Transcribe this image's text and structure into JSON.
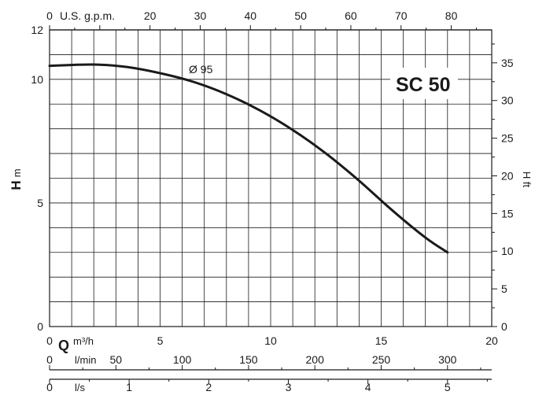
{
  "chart_data": {
    "type": "line",
    "model_label": "SC 50",
    "curve_label": "Ø 95",
    "y_left": {
      "label_bold": "H",
      "label_unit": "m",
      "ticks": [
        "0",
        "5",
        "10",
        "12"
      ],
      "range": [
        0,
        12
      ]
    },
    "y_right": {
      "label": "H ft",
      "ticks": [
        "0",
        "5",
        "10",
        "15",
        "20",
        "25",
        "30",
        "35"
      ],
      "range": [
        0,
        39.37
      ]
    },
    "x_top": {
      "label": "U.S. g.p.m.",
      "ticks": [
        "0",
        "20",
        "30",
        "40",
        "50",
        "60",
        "70",
        "80"
      ]
    },
    "x_m3h": {
      "label_bold": "Q",
      "label_unit": "m³/h",
      "ticks": [
        "0",
        "5",
        "10",
        "15",
        "20"
      ],
      "range": [
        0,
        20
      ]
    },
    "x_lmin": {
      "label": "l/min",
      "ticks": [
        "0",
        "50",
        "100",
        "150",
        "200",
        "250",
        "300"
      ]
    },
    "x_ls": {
      "label": "l/s",
      "ticks": [
        "0",
        "1",
        "2",
        "3",
        "4",
        "5"
      ]
    },
    "series": [
      {
        "x": [
          0,
          2,
          3.5,
          5,
          6.5,
          8,
          9.5,
          11,
          12.5,
          14,
          15.5,
          17,
          18
        ],
        "y": [
          10.55,
          10.6,
          10.5,
          10.25,
          9.9,
          9.4,
          8.75,
          7.95,
          7.0,
          5.9,
          4.7,
          3.6,
          3.0
        ]
      }
    ]
  }
}
